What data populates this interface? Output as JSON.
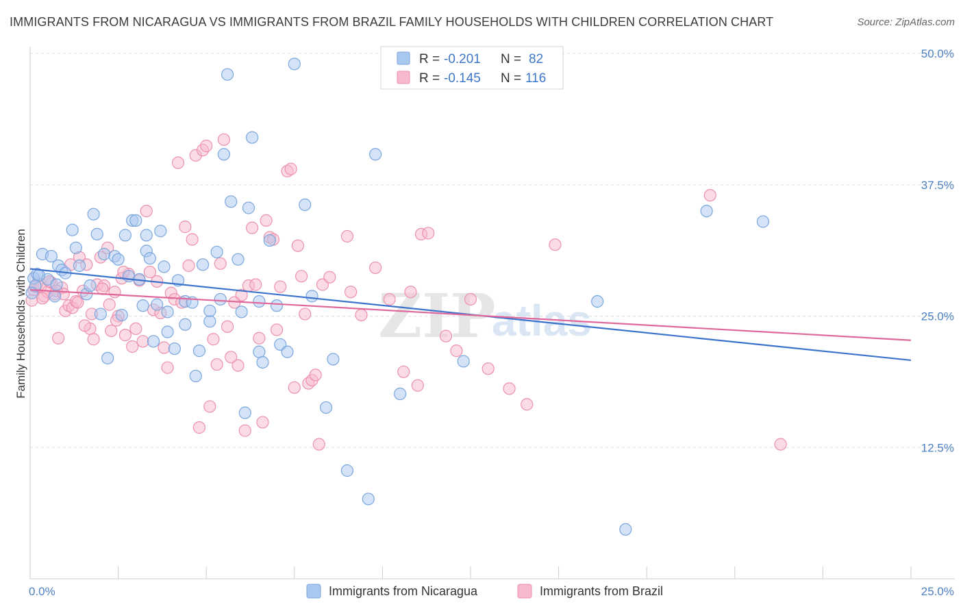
{
  "title": "IMMIGRANTS FROM NICARAGUA VS IMMIGRANTS FROM BRAZIL FAMILY HOUSEHOLDS WITH CHILDREN CORRELATION CHART",
  "source": "Source: ZipAtlas.com",
  "watermark": {
    "zip": "ZIP",
    "atlas": "atlas"
  },
  "stats": [
    {
      "r_label": "R =",
      "r_value": "-0.201",
      "n_label": "N =",
      "n_value": "82"
    },
    {
      "r_label": "R =",
      "r_value": "-0.145",
      "n_label": "N =",
      "n_value": "116"
    }
  ],
  "colors": {
    "nicaragua_fill": "#a9c8f0",
    "nicaragua_stroke": "#7aa6de",
    "nicaragua_line": "#3a72cc",
    "brazil_fill": "#f7b9cc",
    "brazil_stroke": "#ec90ae",
    "brazil_line": "#e0679a",
    "grid": "#dddddd",
    "axis": "#cccccc",
    "tick_label": "#4a7fc1"
  },
  "chart_data": {
    "type": "scatter",
    "title": "IMMIGRANTS FROM NICARAGUA VS IMMIGRANTS FROM BRAZIL FAMILY HOUSEHOLDS WITH CHILDREN CORRELATION CHART",
    "xlabel": "",
    "ylabel": "Family Households with Children",
    "xlim": [
      0,
      25
    ],
    "ylim": [
      0,
      50
    ],
    "x_ticks": [
      0,
      25
    ],
    "x_tick_labels": [
      "0.0%",
      "25.0%"
    ],
    "y_ticks": [
      12.5,
      25,
      37.5,
      50
    ],
    "y_tick_labels": [
      "12.5%",
      "25.0%",
      "37.5%",
      "50.0%"
    ],
    "grid": true,
    "legend_position": "bottom-center",
    "series": [
      {
        "name": "Immigrants from Nicaragua",
        "trend": {
          "x": [
            0,
            25
          ],
          "y": [
            29.5,
            20.8
          ]
        },
        "points": [
          [
            0.1,
            28.6
          ],
          [
            0.15,
            27.9
          ],
          [
            0.2,
            29.0
          ],
          [
            0.35,
            30.9
          ],
          [
            0.5,
            28.5
          ],
          [
            0.6,
            30.7
          ],
          [
            0.7,
            26.9
          ],
          [
            0.75,
            28.0
          ],
          [
            0.8,
            29.8
          ],
          [
            0.9,
            29.4
          ],
          [
            1.0,
            29.1
          ],
          [
            1.2,
            33.2
          ],
          [
            1.3,
            31.5
          ],
          [
            1.4,
            29.8
          ],
          [
            1.6,
            27.1
          ],
          [
            1.7,
            27.9
          ],
          [
            1.8,
            34.7
          ],
          [
            1.9,
            32.8
          ],
          [
            2.0,
            25.2
          ],
          [
            2.1,
            30.9
          ],
          [
            2.2,
            21.0
          ],
          [
            2.4,
            30.7
          ],
          [
            2.5,
            30.4
          ],
          [
            2.6,
            25.1
          ],
          [
            2.7,
            32.7
          ],
          [
            2.8,
            28.8
          ],
          [
            2.9,
            34.1
          ],
          [
            3.0,
            34.1
          ],
          [
            3.1,
            28.5
          ],
          [
            3.2,
            26.0
          ],
          [
            3.3,
            31.2
          ],
          [
            3.3,
            32.7
          ],
          [
            3.4,
            30.5
          ],
          [
            3.5,
            22.6
          ],
          [
            3.6,
            26.1
          ],
          [
            3.7,
            33.1
          ],
          [
            3.8,
            29.7
          ],
          [
            3.9,
            25.4
          ],
          [
            3.9,
            23.5
          ],
          [
            4.1,
            21.9
          ],
          [
            4.2,
            28.4
          ],
          [
            4.4,
            26.4
          ],
          [
            4.4,
            24.2
          ],
          [
            4.6,
            26.3
          ],
          [
            4.7,
            19.3
          ],
          [
            4.8,
            21.7
          ],
          [
            4.9,
            29.9
          ],
          [
            5.1,
            24.5
          ],
          [
            5.1,
            25.5
          ],
          [
            5.3,
            31.1
          ],
          [
            5.4,
            26.6
          ],
          [
            5.5,
            40.4
          ],
          [
            5.6,
            48.0
          ],
          [
            5.7,
            35.9
          ],
          [
            5.9,
            30.4
          ],
          [
            6.0,
            25.4
          ],
          [
            6.1,
            15.8
          ],
          [
            6.2,
            35.3
          ],
          [
            6.3,
            42.0
          ],
          [
            6.5,
            21.6
          ],
          [
            6.5,
            26.4
          ],
          [
            6.6,
            20.6
          ],
          [
            6.8,
            32.2
          ],
          [
            7.0,
            26.0
          ],
          [
            7.1,
            22.3
          ],
          [
            7.3,
            21.6
          ],
          [
            7.5,
            49.0
          ],
          [
            7.8,
            35.6
          ],
          [
            8.0,
            26.9
          ],
          [
            8.4,
            16.3
          ],
          [
            8.6,
            20.9
          ],
          [
            9.0,
            10.3
          ],
          [
            9.6,
            7.6
          ],
          [
            9.8,
            40.4
          ],
          [
            10.5,
            17.6
          ],
          [
            12.3,
            20.7
          ],
          [
            16.1,
            26.4
          ],
          [
            16.9,
            4.7
          ],
          [
            19.2,
            35.0
          ],
          [
            20.8,
            34.0
          ],
          [
            0.05,
            27.2
          ],
          [
            0.25,
            28.9
          ]
        ]
      },
      {
        "name": "Immigrants from Brazil",
        "trend": {
          "x": [
            0,
            25
          ],
          "y": [
            27.5,
            22.7
          ]
        },
        "points": [
          [
            0.05,
            26.5
          ],
          [
            0.1,
            27.5
          ],
          [
            0.2,
            28.1
          ],
          [
            0.3,
            27.8
          ],
          [
            0.4,
            26.9
          ],
          [
            0.5,
            27.3
          ],
          [
            0.6,
            28.2
          ],
          [
            0.7,
            27.1
          ],
          [
            0.8,
            22.9
          ],
          [
            0.9,
            27.7
          ],
          [
            1.0,
            25.5
          ],
          [
            1.1,
            26.0
          ],
          [
            1.2,
            25.8
          ],
          [
            1.3,
            26.4
          ],
          [
            1.4,
            30.6
          ],
          [
            1.5,
            27.4
          ],
          [
            1.6,
            29.9
          ],
          [
            1.7,
            23.8
          ],
          [
            1.8,
            22.8
          ],
          [
            1.9,
            28.0
          ],
          [
            2.0,
            30.6
          ],
          [
            2.1,
            27.9
          ],
          [
            2.2,
            31.5
          ],
          [
            2.3,
            23.6
          ],
          [
            2.4,
            27.3
          ],
          [
            2.5,
            25.0
          ],
          [
            2.6,
            28.6
          ],
          [
            2.7,
            23.2
          ],
          [
            2.8,
            29.0
          ],
          [
            2.9,
            22.1
          ],
          [
            3.0,
            23.8
          ],
          [
            3.1,
            28.4
          ],
          [
            3.2,
            22.6
          ],
          [
            3.3,
            35.0
          ],
          [
            3.4,
            29.2
          ],
          [
            3.5,
            25.6
          ],
          [
            3.6,
            28.3
          ],
          [
            3.7,
            25.3
          ],
          [
            3.8,
            22.0
          ],
          [
            3.9,
            20.1
          ],
          [
            4.0,
            27.2
          ],
          [
            4.1,
            26.6
          ],
          [
            4.2,
            39.6
          ],
          [
            4.3,
            26.3
          ],
          [
            4.4,
            33.5
          ],
          [
            4.5,
            29.8
          ],
          [
            4.6,
            32.3
          ],
          [
            4.7,
            40.3
          ],
          [
            4.8,
            14.4
          ],
          [
            4.9,
            40.8
          ],
          [
            5.0,
            41.2
          ],
          [
            5.1,
            16.4
          ],
          [
            5.2,
            22.8
          ],
          [
            5.3,
            20.4
          ],
          [
            5.4,
            30.0
          ],
          [
            5.5,
            41.8
          ],
          [
            5.6,
            24.0
          ],
          [
            5.7,
            21.1
          ],
          [
            5.8,
            26.3
          ],
          [
            5.9,
            20.3
          ],
          [
            6.0,
            27.0
          ],
          [
            6.1,
            14.1
          ],
          [
            6.2,
            27.9
          ],
          [
            6.3,
            33.4
          ],
          [
            6.4,
            28.0
          ],
          [
            6.5,
            22.9
          ],
          [
            6.6,
            14.9
          ],
          [
            6.7,
            34.1
          ],
          [
            6.8,
            32.5
          ],
          [
            6.9,
            32.3
          ],
          [
            7.0,
            23.7
          ],
          [
            7.1,
            27.8
          ],
          [
            7.3,
            38.8
          ],
          [
            7.4,
            39.0
          ],
          [
            7.5,
            18.2
          ],
          [
            7.6,
            31.7
          ],
          [
            7.7,
            28.8
          ],
          [
            7.8,
            25.2
          ],
          [
            7.9,
            18.6
          ],
          [
            8.0,
            18.9
          ],
          [
            8.1,
            19.4
          ],
          [
            8.2,
            12.8
          ],
          [
            8.3,
            28.0
          ],
          [
            8.5,
            28.7
          ],
          [
            9.0,
            32.6
          ],
          [
            9.1,
            27.3
          ],
          [
            9.4,
            25.1
          ],
          [
            9.8,
            29.6
          ],
          [
            10.2,
            26.6
          ],
          [
            10.6,
            19.7
          ],
          [
            10.8,
            27.3
          ],
          [
            11.0,
            18.4
          ],
          [
            11.1,
            32.8
          ],
          [
            11.3,
            32.9
          ],
          [
            11.8,
            23.1
          ],
          [
            12.1,
            21.7
          ],
          [
            12.5,
            26.6
          ],
          [
            13.0,
            20.0
          ],
          [
            13.6,
            18.1
          ],
          [
            14.1,
            16.6
          ],
          [
            14.9,
            31.8
          ],
          [
            19.3,
            36.5
          ],
          [
            21.3,
            12.8
          ],
          [
            0.15,
            27.8
          ],
          [
            0.35,
            26.7
          ],
          [
            0.55,
            28.3
          ],
          [
            0.75,
            27.4
          ],
          [
            0.95,
            27.1
          ],
          [
            1.15,
            29.9
          ],
          [
            1.35,
            26.3
          ],
          [
            1.55,
            24.1
          ],
          [
            1.75,
            25.2
          ],
          [
            2.05,
            27.6
          ],
          [
            2.25,
            26.1
          ],
          [
            2.45,
            24.6
          ],
          [
            2.65,
            29.2
          ]
        ]
      }
    ]
  },
  "legend": [
    {
      "label": "Immigrants from Nicaragua"
    },
    {
      "label": "Immigrants from Brazil"
    }
  ]
}
